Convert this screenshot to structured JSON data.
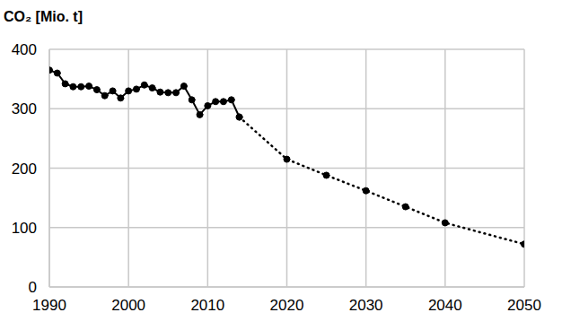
{
  "chart_data": {
    "type": "line",
    "y_label": "CO₂ [Mio. t]",
    "x": [
      1990,
      1991,
      1992,
      1993,
      1994,
      1995,
      1996,
      1997,
      1998,
      1999,
      2000,
      2001,
      2002,
      2003,
      2004,
      2005,
      2006,
      2007,
      2008,
      2009,
      2010,
      2011,
      2012,
      2013,
      2014,
      2020,
      2025,
      2030,
      2035,
      2040,
      2050
    ],
    "series": [
      {
        "color": "#000000",
        "line_style": "solid",
        "marker": "circle",
        "values": [
          365,
          360,
          342,
          337,
          337,
          338,
          332,
          322,
          330,
          318,
          330,
          333,
          340,
          335,
          328,
          327,
          327,
          338,
          315,
          290,
          305,
          312,
          312,
          315,
          286,
          null,
          null,
          null,
          null,
          null,
          null
        ]
      },
      {
        "color": "#000000",
        "line_style": "dotted",
        "marker": "circle",
        "values": [
          null,
          null,
          null,
          null,
          null,
          null,
          null,
          null,
          null,
          null,
          null,
          null,
          null,
          null,
          null,
          null,
          null,
          null,
          null,
          null,
          null,
          null,
          null,
          null,
          286,
          215,
          188,
          162,
          135,
          108,
          72
        ]
      }
    ],
    "xlim": [
      1990,
      2050
    ],
    "xticks": [
      1990,
      2000,
      2010,
      2020,
      2030,
      2040,
      2050
    ],
    "ylim": [
      0,
      400
    ],
    "yticks": [
      0,
      100,
      200,
      300,
      400
    ],
    "grid": true
  }
}
